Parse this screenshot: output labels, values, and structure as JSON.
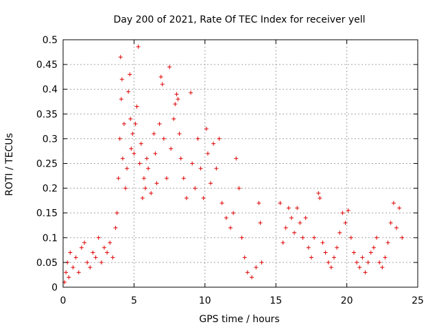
{
  "chart_data": {
    "type": "scatter",
    "title": "Day 200 of 2021, Rate Of TEC Index for receiver yell",
    "xlabel": "GPS time / hours",
    "ylabel": "ROTI / TECUs",
    "xlim": [
      0,
      25
    ],
    "ylim": [
      0,
      0.5
    ],
    "xticks": [
      "0",
      "5",
      "10",
      "15",
      "20",
      "25"
    ],
    "yticks": [
      "0",
      "0.05",
      "0.1",
      "0.15",
      "0.2",
      "0.25",
      "0.3",
      "0.35",
      "0.4",
      "0.45",
      "0.5"
    ],
    "grid": true,
    "marker": "+",
    "color": "#e00000",
    "series": [
      {
        "points": [
          [
            0.1,
            0.01
          ],
          [
            0.2,
            0.03
          ],
          [
            0.3,
            0.05
          ],
          [
            0.4,
            0.02
          ],
          [
            0.5,
            0.07
          ],
          [
            0.7,
            0.04
          ],
          [
            0.9,
            0.06
          ],
          [
            1.1,
            0.03
          ],
          [
            1.3,
            0.08
          ],
          [
            1.5,
            0.09
          ],
          [
            1.7,
            0.05
          ],
          [
            1.9,
            0.04
          ],
          [
            2.1,
            0.07
          ],
          [
            2.3,
            0.06
          ],
          [
            2.5,
            0.1
          ],
          [
            2.7,
            0.05
          ],
          [
            2.9,
            0.08
          ],
          [
            3.1,
            0.07
          ],
          [
            3.3,
            0.09
          ],
          [
            3.5,
            0.06
          ],
          [
            3.7,
            0.12
          ],
          [
            3.8,
            0.15
          ],
          [
            3.9,
            0.22
          ],
          [
            4.0,
            0.3
          ],
          [
            4.05,
            0.465
          ],
          [
            4.1,
            0.38
          ],
          [
            4.15,
            0.42
          ],
          [
            4.2,
            0.26
          ],
          [
            4.3,
            0.33
          ],
          [
            4.4,
            0.2
          ],
          [
            4.5,
            0.24
          ],
          [
            4.6,
            0.395
          ],
          [
            4.7,
            0.43
          ],
          [
            4.75,
            0.34
          ],
          [
            4.8,
            0.28
          ],
          [
            4.9,
            0.31
          ],
          [
            5.0,
            0.27
          ],
          [
            5.1,
            0.33
          ],
          [
            5.2,
            0.365
          ],
          [
            5.3,
            0.486
          ],
          [
            5.4,
            0.25
          ],
          [
            5.5,
            0.29
          ],
          [
            5.6,
            0.18
          ],
          [
            5.7,
            0.22
          ],
          [
            5.8,
            0.2
          ],
          [
            5.9,
            0.26
          ],
          [
            6.0,
            0.24
          ],
          [
            6.2,
            0.19
          ],
          [
            6.4,
            0.31
          ],
          [
            6.5,
            0.27
          ],
          [
            6.6,
            0.21
          ],
          [
            6.8,
            0.33
          ],
          [
            6.9,
            0.425
          ],
          [
            7.0,
            0.41
          ],
          [
            7.1,
            0.3
          ],
          [
            7.3,
            0.22
          ],
          [
            7.5,
            0.445
          ],
          [
            7.6,
            0.28
          ],
          [
            7.8,
            0.34
          ],
          [
            7.9,
            0.37
          ],
          [
            8.0,
            0.39
          ],
          [
            8.1,
            0.38
          ],
          [
            8.2,
            0.31
          ],
          [
            8.3,
            0.26
          ],
          [
            8.5,
            0.22
          ],
          [
            8.7,
            0.18
          ],
          [
            9.0,
            0.393
          ],
          [
            9.1,
            0.25
          ],
          [
            9.3,
            0.2
          ],
          [
            9.5,
            0.3
          ],
          [
            9.7,
            0.24
          ],
          [
            9.9,
            0.18
          ],
          [
            10.1,
            0.32
          ],
          [
            10.2,
            0.27
          ],
          [
            10.4,
            0.21
          ],
          [
            10.6,
            0.29
          ],
          [
            10.8,
            0.24
          ],
          [
            11.0,
            0.3
          ],
          [
            11.2,
            0.17
          ],
          [
            11.5,
            0.14
          ],
          [
            11.8,
            0.12
          ],
          [
            12.0,
            0.15
          ],
          [
            12.2,
            0.26
          ],
          [
            12.4,
            0.2
          ],
          [
            12.6,
            0.1
          ],
          [
            12.8,
            0.06
          ],
          [
            13.0,
            0.03
          ],
          [
            13.3,
            0.02
          ],
          [
            13.6,
            0.04
          ],
          [
            13.8,
            0.17
          ],
          [
            13.9,
            0.13
          ],
          [
            14.0,
            0.05
          ],
          [
            15.3,
            0.17
          ],
          [
            15.5,
            0.09
          ],
          [
            15.7,
            0.12
          ],
          [
            15.9,
            0.16
          ],
          [
            16.1,
            0.14
          ],
          [
            16.3,
            0.11
          ],
          [
            16.5,
            0.16
          ],
          [
            16.7,
            0.13
          ],
          [
            16.9,
            0.1
          ],
          [
            17.1,
            0.14
          ],
          [
            17.3,
            0.08
          ],
          [
            17.5,
            0.06
          ],
          [
            17.7,
            0.1
          ],
          [
            18.0,
            0.19
          ],
          [
            18.1,
            0.18
          ],
          [
            18.3,
            0.09
          ],
          [
            18.5,
            0.07
          ],
          [
            18.7,
            0.05
          ],
          [
            18.9,
            0.04
          ],
          [
            19.1,
            0.06
          ],
          [
            19.3,
            0.08
          ],
          [
            19.5,
            0.11
          ],
          [
            19.7,
            0.15
          ],
          [
            19.9,
            0.13
          ],
          [
            20.1,
            0.155
          ],
          [
            20.3,
            0.1
          ],
          [
            20.5,
            0.07
          ],
          [
            20.7,
            0.05
          ],
          [
            20.9,
            0.04
          ],
          [
            21.1,
            0.06
          ],
          [
            21.3,
            0.03
          ],
          [
            21.5,
            0.05
          ],
          [
            21.7,
            0.07
          ],
          [
            21.9,
            0.08
          ],
          [
            22.1,
            0.1
          ],
          [
            22.3,
            0.05
          ],
          [
            22.5,
            0.04
          ],
          [
            22.7,
            0.06
          ],
          [
            22.9,
            0.09
          ],
          [
            23.1,
            0.13
          ],
          [
            23.3,
            0.17
          ],
          [
            23.5,
            0.12
          ],
          [
            23.7,
            0.16
          ],
          [
            23.9,
            0.1
          ]
        ]
      }
    ]
  }
}
